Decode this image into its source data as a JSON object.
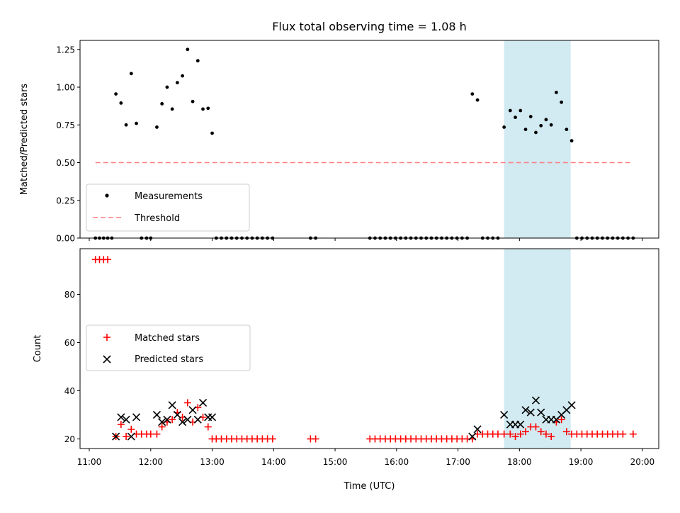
{
  "chart_data": [
    {
      "type": "scatter",
      "title": "Flux total observing time = 1.08 h",
      "xlabel": "",
      "ylabel": "Matched/Predicted stars",
      "xlim": [
        "10:51",
        "20:16"
      ],
      "ylim": [
        0,
        1.31
      ],
      "yticks": [
        "0.00",
        "0.25",
        "0.50",
        "0.75",
        "1.00",
        "1.25"
      ],
      "highlight": {
        "start": "17:45",
        "end": "18:50",
        "color": "#add8e6"
      },
      "legend": {
        "position": "lower-left",
        "entries": [
          "Measurements",
          "Threshold"
        ]
      },
      "threshold": {
        "name": "Threshold",
        "value": 0.5,
        "from": "11:06",
        "to": "19:48",
        "color": "#ff7f7f"
      },
      "series": [
        {
          "name": "Measurements",
          "color": "#000000",
          "points": [
            [
              "11:26",
              0.955
            ],
            [
              "11:31",
              0.895
            ],
            [
              "11:36",
              0.75
            ],
            [
              "11:41",
              1.09
            ],
            [
              "11:46",
              0.76
            ],
            [
              "12:06",
              0.735
            ],
            [
              "12:11",
              0.89
            ],
            [
              "12:16",
              1.0
            ],
            [
              "12:21",
              0.855
            ],
            [
              "12:26",
              1.03
            ],
            [
              "12:31",
              1.075
            ],
            [
              "12:36",
              1.25
            ],
            [
              "12:41",
              0.905
            ],
            [
              "12:46",
              1.175
            ],
            [
              "12:51",
              0.855
            ],
            [
              "12:56",
              0.86
            ],
            [
              "13:00",
              0.695
            ],
            [
              "17:14",
              0.955
            ],
            [
              "17:19",
              0.915
            ],
            [
              "17:45",
              0.735
            ],
            [
              "17:51",
              0.845
            ],
            [
              "17:56",
              0.8
            ],
            [
              "18:01",
              0.845
            ],
            [
              "18:06",
              0.72
            ],
            [
              "18:11",
              0.805
            ],
            [
              "18:16",
              0.7
            ],
            [
              "18:21",
              0.745
            ],
            [
              "18:26",
              0.785
            ],
            [
              "18:31",
              0.75
            ],
            [
              "18:36",
              0.965
            ],
            [
              "18:41",
              0.9
            ],
            [
              "18:46",
              0.72
            ],
            [
              "18:51",
              0.645
            ],
            [
              "11:06",
              0
            ],
            [
              "11:10",
              0
            ],
            [
              "11:14",
              0
            ],
            [
              "11:18",
              0
            ],
            [
              "11:22",
              0
            ],
            [
              "11:51",
              0
            ],
            [
              "11:56",
              0
            ],
            [
              "12:00",
              0
            ],
            [
              "13:04",
              0
            ],
            [
              "13:09",
              0
            ],
            [
              "13:14",
              0
            ],
            [
              "13:19",
              0
            ],
            [
              "13:24",
              0
            ],
            [
              "13:29",
              0
            ],
            [
              "13:34",
              0
            ],
            [
              "13:39",
              0
            ],
            [
              "13:44",
              0
            ],
            [
              "13:49",
              0
            ],
            [
              "13:54",
              0
            ],
            [
              "13:59",
              0
            ],
            [
              "14:36",
              0
            ],
            [
              "14:41",
              0
            ],
            [
              "15:34",
              0
            ],
            [
              "15:39",
              0
            ],
            [
              "15:44",
              0
            ],
            [
              "15:49",
              0
            ],
            [
              "15:54",
              0
            ],
            [
              "15:59",
              0
            ],
            [
              "16:04",
              0
            ],
            [
              "16:09",
              0
            ],
            [
              "16:14",
              0
            ],
            [
              "16:19",
              0
            ],
            [
              "16:24",
              0
            ],
            [
              "16:29",
              0
            ],
            [
              "16:34",
              0
            ],
            [
              "16:39",
              0
            ],
            [
              "16:44",
              0
            ],
            [
              "16:49",
              0
            ],
            [
              "16:54",
              0
            ],
            [
              "16:59",
              0
            ],
            [
              "17:04",
              0
            ],
            [
              "17:09",
              0
            ],
            [
              "17:24",
              0
            ],
            [
              "17:29",
              0
            ],
            [
              "17:34",
              0
            ],
            [
              "17:39",
              0
            ],
            [
              "18:56",
              0
            ],
            [
              "19:01",
              0
            ],
            [
              "19:06",
              0
            ],
            [
              "19:11",
              0
            ],
            [
              "19:16",
              0
            ],
            [
              "19:21",
              0
            ],
            [
              "19:26",
              0
            ],
            [
              "19:31",
              0
            ],
            [
              "19:36",
              0
            ],
            [
              "19:41",
              0
            ],
            [
              "19:46",
              0
            ],
            [
              "19:51",
              0
            ]
          ]
        }
      ]
    },
    {
      "type": "scatter",
      "title": "",
      "xlabel": "Time (UTC)",
      "ylabel": "Count",
      "xlim": [
        "10:51",
        "20:16"
      ],
      "ylim": [
        16,
        99
      ],
      "xticks": [
        "11:00",
        "12:00",
        "13:00",
        "14:00",
        "15:00",
        "16:00",
        "17:00",
        "18:00",
        "19:00",
        "20:00"
      ],
      "yticks": [
        "20",
        "40",
        "60",
        "80"
      ],
      "highlight": {
        "start": "17:45",
        "end": "18:50",
        "color": "#add8e6"
      },
      "legend": {
        "position": "center-left",
        "entries": [
          "Matched stars",
          "Predicted stars"
        ]
      },
      "series": [
        {
          "name": "Matched stars",
          "marker": "plus",
          "color": "#ff0000",
          "points": [
            [
              "11:06",
              94.5
            ],
            [
              "11:10",
              94.5
            ],
            [
              "11:14",
              94.5
            ],
            [
              "11:18",
              94.5
            ],
            [
              "11:26",
              21
            ],
            [
              "11:31",
              26
            ],
            [
              "11:36",
              21
            ],
            [
              "11:41",
              24
            ],
            [
              "11:46",
              22
            ],
            [
              "11:51",
              22
            ],
            [
              "11:56",
              22
            ],
            [
              "12:00",
              22
            ],
            [
              "12:06",
              22
            ],
            [
              "12:11",
              25
            ],
            [
              "12:16",
              27
            ],
            [
              "12:21",
              28
            ],
            [
              "12:26",
              31
            ],
            [
              "12:31",
              29
            ],
            [
              "12:36",
              35
            ],
            [
              "12:41",
              27
            ],
            [
              "12:46",
              33
            ],
            [
              "12:51",
              29
            ],
            [
              "12:56",
              25
            ],
            [
              "13:00",
              20
            ],
            [
              "13:04",
              20
            ],
            [
              "13:09",
              20
            ],
            [
              "13:14",
              20
            ],
            [
              "13:19",
              20
            ],
            [
              "13:24",
              20
            ],
            [
              "13:29",
              20
            ],
            [
              "13:34",
              20
            ],
            [
              "13:39",
              20
            ],
            [
              "13:44",
              20
            ],
            [
              "13:49",
              20
            ],
            [
              "13:54",
              20
            ],
            [
              "13:59",
              20
            ],
            [
              "14:36",
              20
            ],
            [
              "14:41",
              20
            ],
            [
              "15:34",
              20
            ],
            [
              "15:39",
              20
            ],
            [
              "15:44",
              20
            ],
            [
              "15:49",
              20
            ],
            [
              "15:54",
              20
            ],
            [
              "15:59",
              20
            ],
            [
              "16:04",
              20
            ],
            [
              "16:09",
              20
            ],
            [
              "16:14",
              20
            ],
            [
              "16:19",
              20
            ],
            [
              "16:24",
              20
            ],
            [
              "16:29",
              20
            ],
            [
              "16:34",
              20
            ],
            [
              "16:39",
              20
            ],
            [
              "16:44",
              20
            ],
            [
              "16:49",
              20
            ],
            [
              "16:54",
              20
            ],
            [
              "16:59",
              20
            ],
            [
              "17:04",
              20
            ],
            [
              "17:09",
              20
            ],
            [
              "17:14",
              20
            ],
            [
              "17:19",
              22
            ],
            [
              "17:24",
              22
            ],
            [
              "17:29",
              22
            ],
            [
              "17:34",
              22
            ],
            [
              "17:39",
              22
            ],
            [
              "17:45",
              22
            ],
            [
              "17:51",
              22
            ],
            [
              "17:56",
              21
            ],
            [
              "18:01",
              22
            ],
            [
              "18:06",
              23
            ],
            [
              "18:11",
              25
            ],
            [
              "18:16",
              25
            ],
            [
              "18:21",
              23
            ],
            [
              "18:26",
              22
            ],
            [
              "18:31",
              21
            ],
            [
              "18:36",
              27
            ],
            [
              "18:41",
              28
            ],
            [
              "18:46",
              23
            ],
            [
              "18:51",
              22
            ],
            [
              "18:56",
              22
            ],
            [
              "19:01",
              22
            ],
            [
              "19:06",
              22
            ],
            [
              "19:11",
              22
            ],
            [
              "19:16",
              22
            ],
            [
              "19:21",
              22
            ],
            [
              "19:26",
              22
            ],
            [
              "19:31",
              22
            ],
            [
              "19:36",
              22
            ],
            [
              "19:41",
              22
            ],
            [
              "19:51",
              22
            ]
          ]
        },
        {
          "name": "Predicted stars",
          "marker": "x",
          "color": "#000000",
          "points": [
            [
              "11:26",
              21
            ],
            [
              "11:31",
              29
            ],
            [
              "11:36",
              28
            ],
            [
              "11:41",
              21
            ],
            [
              "11:46",
              29
            ],
            [
              "12:06",
              30
            ],
            [
              "12:11",
              27
            ],
            [
              "12:16",
              28
            ],
            [
              "12:21",
              34
            ],
            [
              "12:26",
              30
            ],
            [
              "12:31",
              27
            ],
            [
              "12:36",
              28
            ],
            [
              "12:41",
              32
            ],
            [
              "12:46",
              28
            ],
            [
              "12:51",
              35
            ],
            [
              "12:56",
              29
            ],
            [
              "13:00",
              29
            ],
            [
              "17:14",
              21
            ],
            [
              "17:19",
              24
            ],
            [
              "17:45",
              30
            ],
            [
              "17:51",
              26
            ],
            [
              "17:56",
              26
            ],
            [
              "18:01",
              26
            ],
            [
              "18:06",
              32
            ],
            [
              "18:11",
              31
            ],
            [
              "18:16",
              36
            ],
            [
              "18:21",
              31
            ],
            [
              "18:26",
              28
            ],
            [
              "18:31",
              28
            ],
            [
              "18:36",
              28
            ],
            [
              "18:41",
              30
            ],
            [
              "18:46",
              32
            ],
            [
              "18:51",
              34
            ]
          ]
        }
      ]
    }
  ]
}
